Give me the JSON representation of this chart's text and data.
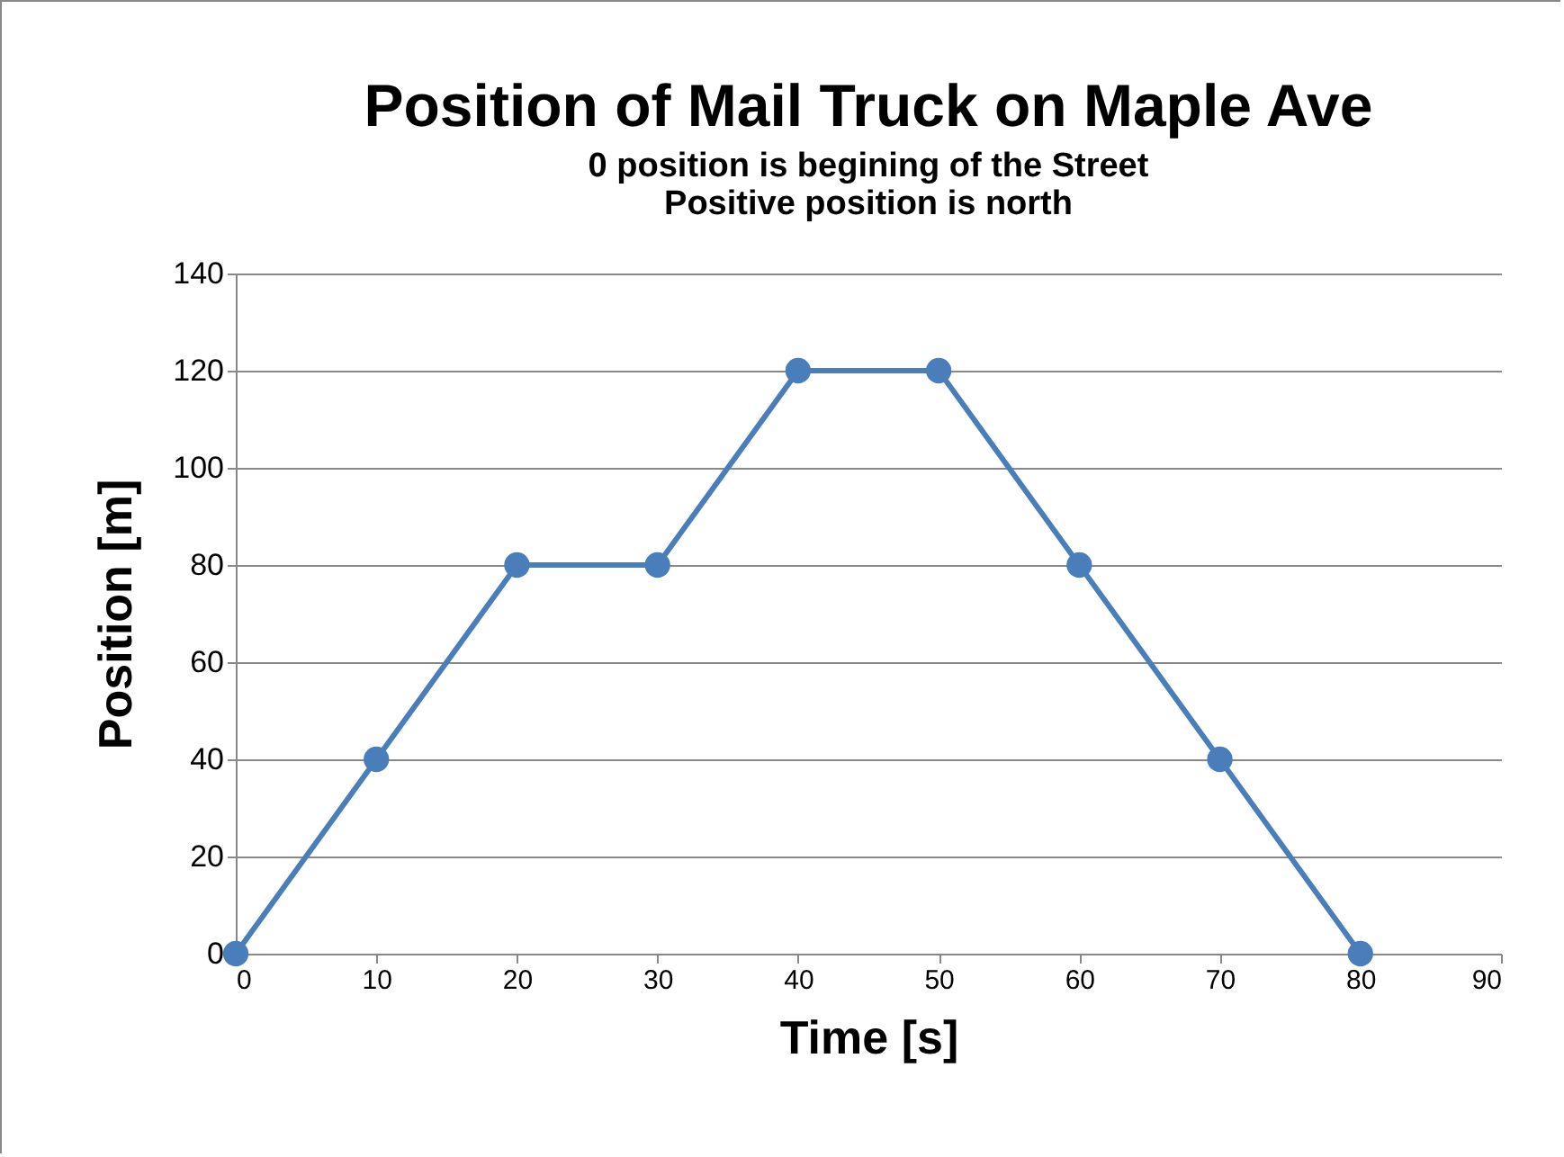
{
  "chart_data": {
    "type": "line",
    "title": "Position of Mail Truck on Maple Ave",
    "subtitle": "0 position is begining of the Street\nPositive position is north",
    "xlabel": "Time [s]",
    "ylabel": "Position [m]",
    "x": [
      0,
      10,
      20,
      30,
      40,
      50,
      60,
      70,
      80
    ],
    "series": [
      {
        "color": "#4a7ebb",
        "values": [
          0,
          40,
          80,
          80,
          120,
          120,
          80,
          40,
          0
        ]
      }
    ],
    "xlim": [
      0,
      90
    ],
    "xticks": [
      0,
      10,
      20,
      30,
      40,
      50,
      60,
      70,
      80,
      90
    ],
    "ylim": [
      0,
      140
    ],
    "yticks": [
      0,
      20,
      40,
      60,
      80,
      100,
      120,
      140
    ],
    "grid": "y",
    "marker": "circle",
    "line_style": "solid"
  }
}
